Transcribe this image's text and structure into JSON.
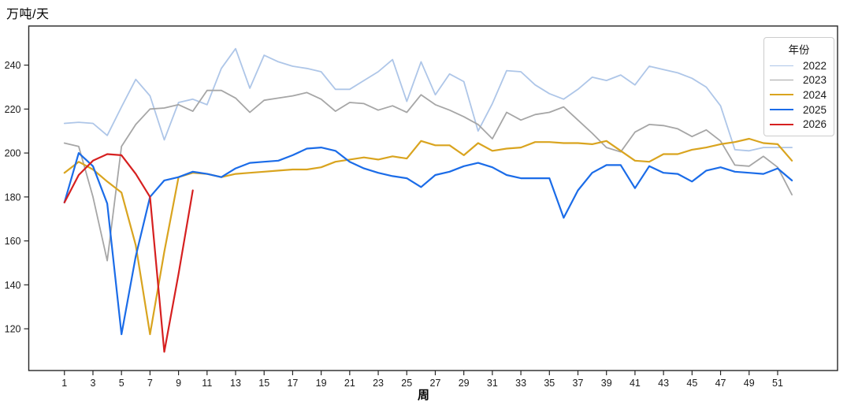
{
  "chart_data": {
    "type": "line",
    "ylabel": "万吨/天",
    "xlabel": "周",
    "legend_title": "年份",
    "legend_position": "upper right",
    "grid": false,
    "x_unit": "week",
    "x_start": 1,
    "x_ticks": [
      1,
      3,
      5,
      7,
      9,
      11,
      13,
      15,
      17,
      19,
      21,
      23,
      25,
      27,
      29,
      31,
      33,
      35,
      37,
      39,
      41,
      43,
      45,
      47,
      49,
      51
    ],
    "y_ticks": [
      120,
      140,
      160,
      180,
      200,
      220,
      240
    ],
    "xlim": [
      -1.5,
      55.2
    ],
    "ylim": [
      101,
      257.8
    ],
    "axis_color": "#262626",
    "tick_label_color": "#1a1a1a",
    "series": [
      {
        "name": "2022",
        "color": "#aec6e8",
        "width": 1.8,
        "values": [
          213.5,
          214,
          213.5,
          208,
          221,
          233.5,
          226,
          206,
          223,
          224.5,
          222,
          238.5,
          247.5,
          229.5,
          244.5,
          241.5,
          239.5,
          238.5,
          237,
          229,
          229,
          233,
          237,
          242.5,
          223.5,
          241.5,
          226.5,
          236,
          232.5,
          210,
          222.5,
          237.5,
          237,
          231,
          227,
          224.5,
          229,
          234.5,
          233,
          235.5,
          231,
          239.5,
          238,
          236.5,
          234,
          230,
          221.5,
          201.5,
          201,
          202.5,
          202.5,
          202.5
        ]
      },
      {
        "name": "2023",
        "color": "#a6a6a6",
        "width": 1.8,
        "values": [
          204.5,
          203,
          180,
          151,
          203,
          213,
          220,
          220.5,
          222,
          219,
          228.5,
          228.5,
          225,
          218.5,
          224,
          225,
          226,
          227.5,
          224.5,
          219,
          223,
          222.5,
          219.5,
          221.5,
          218.5,
          226.5,
          222,
          219.5,
          216.5,
          213,
          206.5,
          218.5,
          215,
          217.5,
          218.5,
          221,
          215,
          209,
          202.5,
          200.5,
          209.5,
          213,
          212.5,
          211,
          207.5,
          210.5,
          205.5,
          194.5,
          194,
          198.5,
          193.5,
          181
        ]
      },
      {
        "name": "2024",
        "color": "#d9a41f",
        "width": 2.2,
        "values": [
          191,
          196,
          192.5,
          187,
          182,
          158,
          117.5,
          155,
          189,
          191,
          190.5,
          189,
          190.5,
          191,
          191.5,
          192,
          192.5,
          192.5,
          193.5,
          196,
          197,
          198,
          197,
          198.5,
          197.5,
          205.5,
          203.5,
          203.5,
          199,
          204.5,
          201,
          202,
          202.5,
          205,
          205,
          204.5,
          204.5,
          204,
          205.5,
          201,
          196.5,
          196,
          199.5,
          199.5,
          201.5,
          202.5,
          204,
          205,
          206.5,
          204.5,
          204,
          196.5
        ]
      },
      {
        "name": "2025",
        "color": "#1b6ce8",
        "width": 2.2,
        "values": [
          177.5,
          200,
          194,
          177,
          117.5,
          153,
          180,
          187.5,
          189,
          191.5,
          190.5,
          189,
          193,
          195.5,
          196,
          196.5,
          199,
          202,
          202.5,
          201,
          196,
          193,
          191,
          189.5,
          188.5,
          184.5,
          190,
          191.5,
          194,
          195.5,
          193.5,
          190,
          188.5,
          188.5,
          188.5,
          170.5,
          183,
          191,
          194.5,
          194.5,
          184,
          194,
          191,
          190.5,
          187,
          192,
          193.5,
          191.5,
          191,
          190.5,
          193,
          187.5
        ]
      },
      {
        "name": "2026",
        "color": "#d62020",
        "width": 2.2,
        "values": [
          177.5,
          190,
          196.5,
          199.5,
          199,
          190.5,
          180,
          109.5,
          145,
          183
        ]
      }
    ]
  }
}
